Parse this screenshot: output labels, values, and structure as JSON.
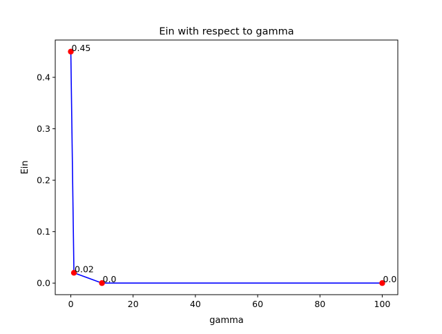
{
  "chart_data": {
    "type": "line",
    "title": "Ein with respect to gamma",
    "xlabel": "gamma",
    "ylabel": "Ein",
    "xlim": [
      -5,
      105
    ],
    "ylim": [
      -0.0225,
      0.4725
    ],
    "x_ticks": [
      0,
      20,
      40,
      60,
      80,
      100
    ],
    "y_ticks": [
      0.0,
      0.1,
      0.2,
      0.3,
      0.4
    ],
    "x_tick_labels": [
      "0",
      "20",
      "40",
      "60",
      "80",
      "100"
    ],
    "y_tick_labels": [
      "0.0",
      "0.1",
      "0.2",
      "0.3",
      "0.4"
    ],
    "grid": false,
    "legend": "none",
    "series": [
      {
        "x": [
          0.001,
          1,
          10,
          100
        ],
        "y": [
          0.45,
          0.02,
          0.0,
          0.0
        ],
        "point_labels": [
          "0.45",
          "0.02",
          "0.0",
          "0.0"
        ],
        "line_color": "#0000ff",
        "marker_color": "#ff0000"
      }
    ]
  }
}
